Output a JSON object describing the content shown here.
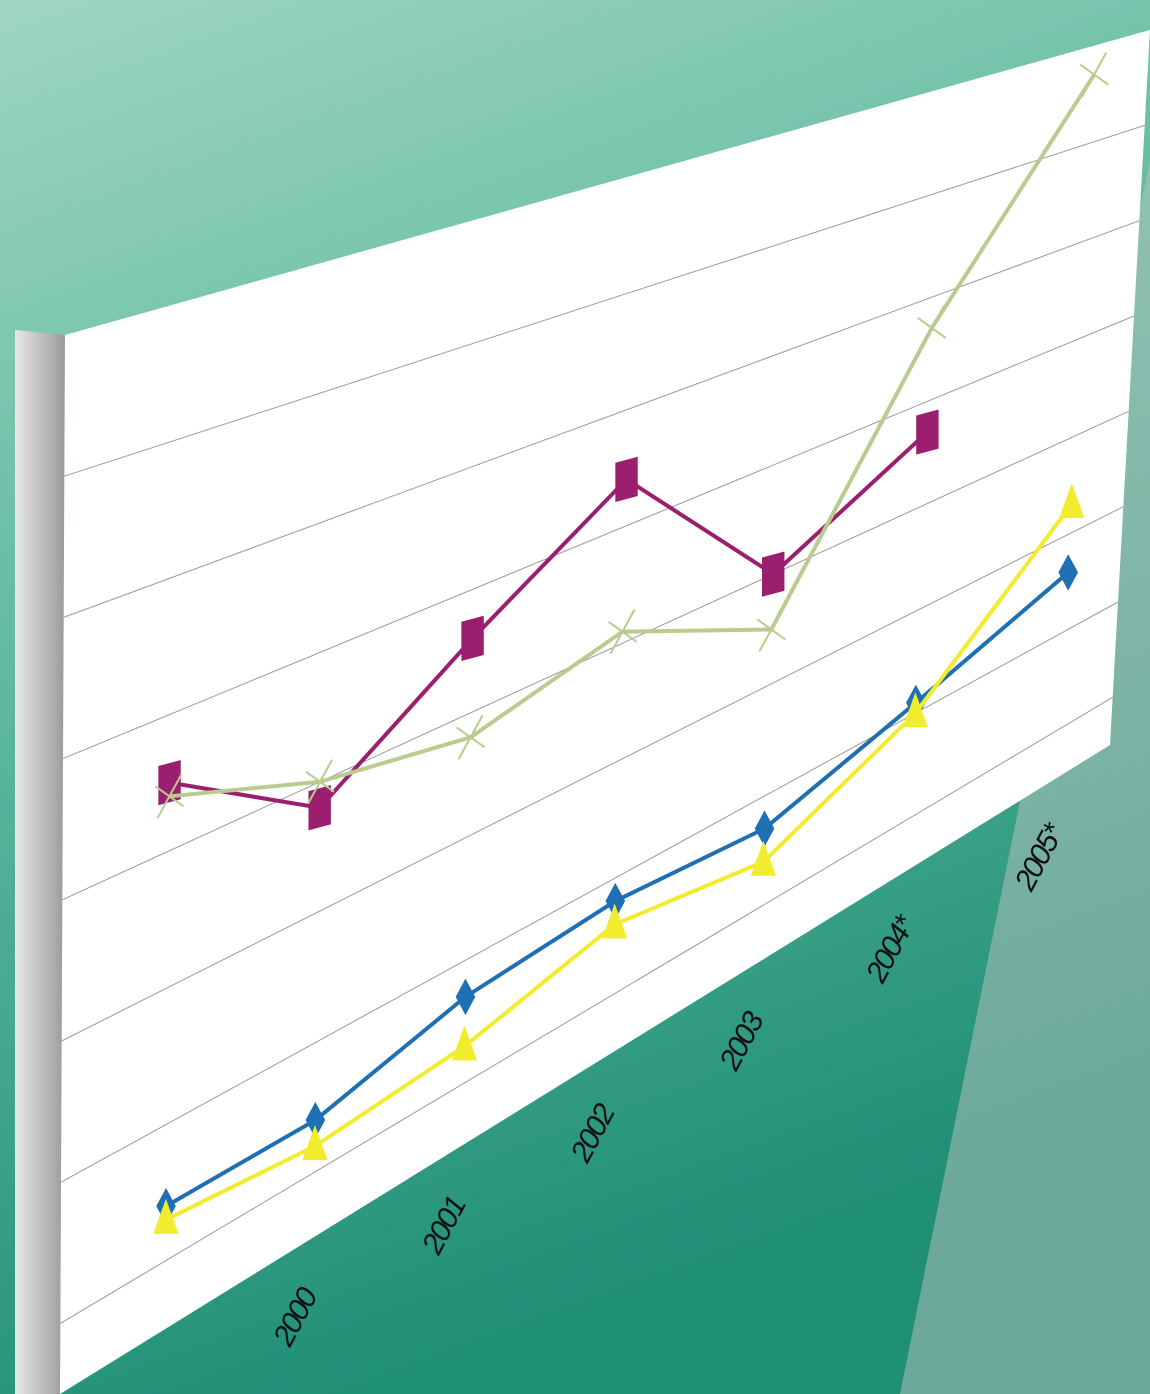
{
  "chart_data": {
    "type": "line",
    "categories": [
      null,
      "2000",
      "2001",
      "2002",
      "2003",
      "2004*",
      "2005*"
    ],
    "series": [
      {
        "color": "#9b1f6e",
        "marker": "square",
        "values": [
          3.5,
          2.8,
          3.6,
          4.4,
          3.0,
          3.7,
          null
        ]
      },
      {
        "color": "#b8cc8e",
        "marker": "x",
        "values": [
          3.4,
          3.0,
          2.8,
          3.1,
          2.5,
          4.7,
          6.7
        ]
      },
      {
        "color": "#1f6fb5",
        "marker": "diamond",
        "values": [
          0.4,
          0.4,
          0.7,
          0.8,
          0.7,
          1.1,
          1.6
        ]
      },
      {
        "color": "#f2ec2e",
        "marker": "triangle",
        "values": [
          0.3,
          0.2,
          0.3,
          0.6,
          0.4,
          1.0,
          2.3
        ]
      }
    ],
    "ylim": [
      -0.5,
      7
    ],
    "yticks": [
      0,
      1,
      2,
      3,
      4,
      5,
      6
    ],
    "grid": true
  }
}
